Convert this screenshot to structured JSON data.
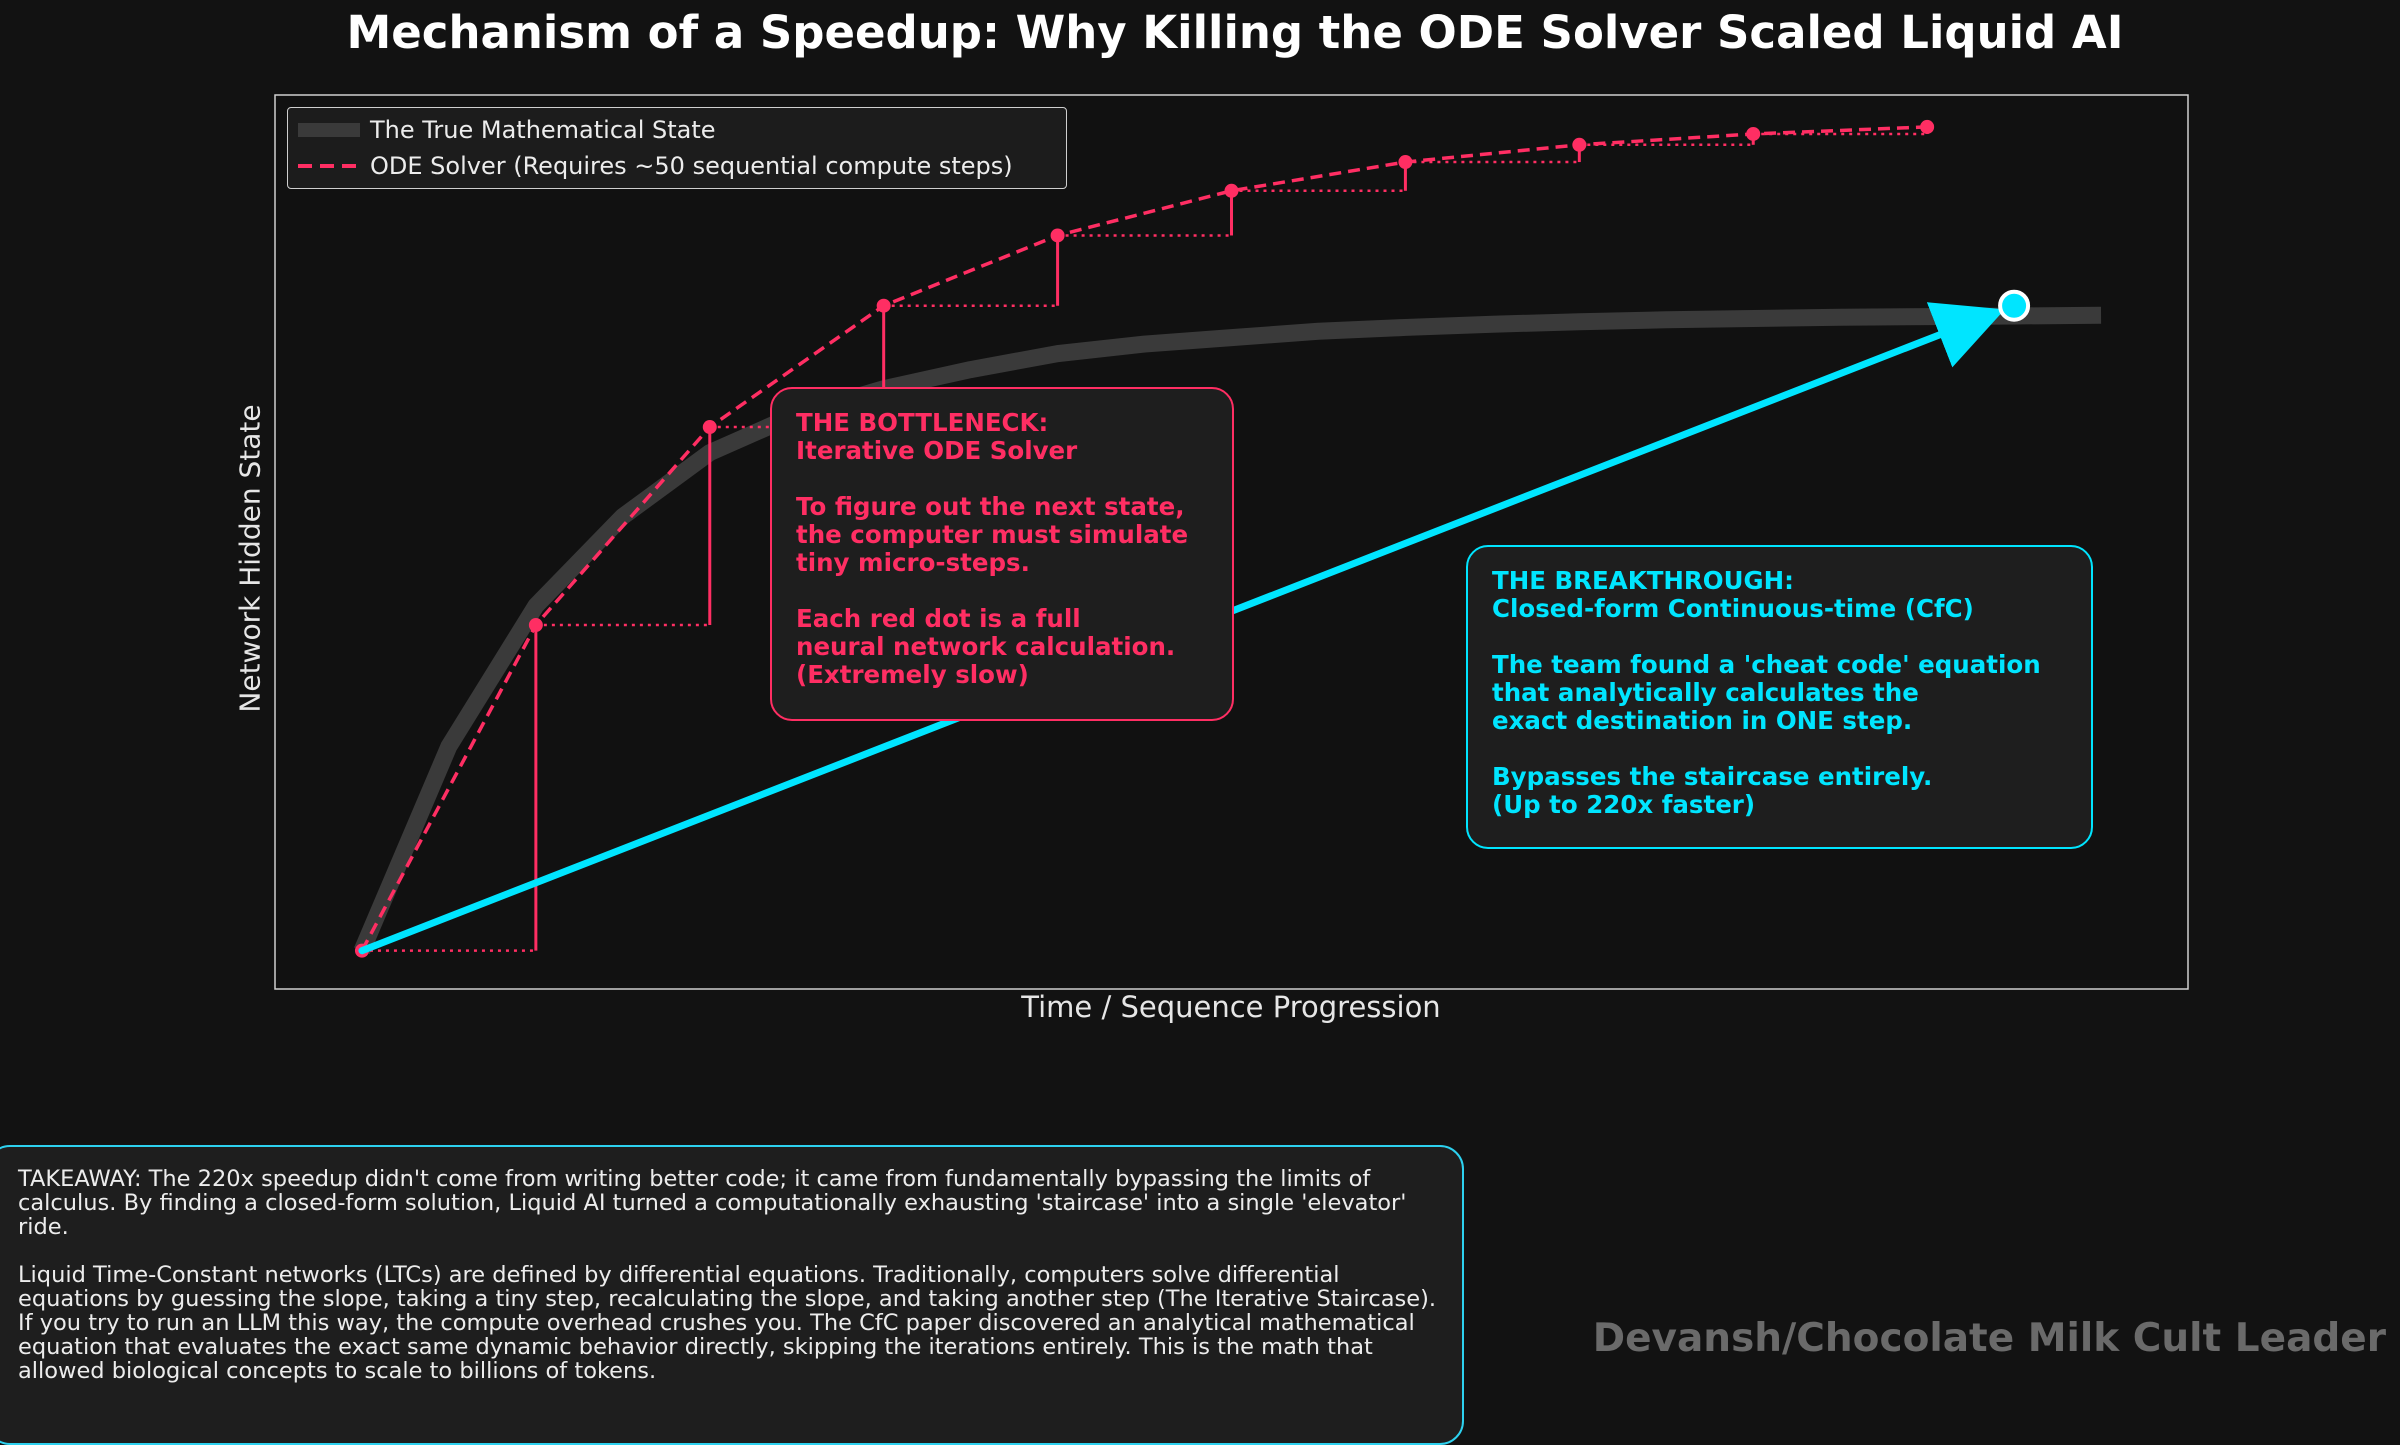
{
  "title": "Mechanism of a Speedup: Why Killing the ODE Solver Scaled Liquid AI",
  "chart_data": {
    "type": "line",
    "xlabel": "Time / Sequence Progression",
    "ylabel": "Network Hidden State",
    "ticks": "none",
    "grid": false,
    "legend_position": "top-left",
    "series": [
      {
        "name": "The True Mathematical State",
        "style": "thick gray line",
        "color": "#3a3a3a",
        "x": [
          0,
          0.5,
          1,
          1.5,
          2,
          2.5,
          3,
          3.5,
          4,
          4.5,
          5,
          5.5,
          6,
          6.5,
          7,
          7.5,
          8,
          8.5,
          9,
          9.5,
          10
        ],
        "y": [
          0,
          0.32,
          0.54,
          0.68,
          0.78,
          0.84,
          0.88,
          0.91,
          0.935,
          0.95,
          0.96,
          0.97,
          0.976,
          0.981,
          0.985,
          0.988,
          0.99,
          0.992,
          0.993,
          0.994,
          0.995
        ]
      },
      {
        "name": "ODE Solver (Requires ~50 sequential compute steps)",
        "style": "dashed line with dots, staircase",
        "color": "#ff2e63",
        "x": [
          0,
          1,
          2,
          3,
          4,
          5,
          6,
          7,
          8,
          9
        ],
        "y": [
          0,
          0.51,
          0.82,
          1.01,
          1.12,
          1.19,
          1.235,
          1.262,
          1.279,
          1.29
        ]
      },
      {
        "style": "single-step arrow",
        "color": "#00e5ff",
        "x": [
          0,
          9.5
        ],
        "y": [
          0,
          1.01
        ]
      }
    ],
    "ylim": [
      -0.06,
      1.34
    ],
    "xlim": [
      -0.5,
      10.5
    ]
  },
  "callouts": {
    "bottleneck": "THE BOTTLENECK:\nIterative ODE Solver\n\nTo figure out the next state,\nthe computer must simulate\ntiny micro-steps.\n\nEach red dot is a full\nneural network calculation.\n(Extremely slow)",
    "breakthrough": "THE BREAKTHROUGH:\nClosed-form Continuous-time (CfC)\n\nThe team found a 'cheat code' equation\nthat analytically calculates the\nexact destination in ONE step.\n\nBypasses the staircase entirely.\n(Up to 220x faster)"
  },
  "takeaway": {
    "p1": "TAKEAWAY: The 220x speedup didn't come from writing better code; it came from fundamentally bypassing the limits of calculus. By finding a closed-form solution, Liquid AI turned a computationally exhausting 'staircase' into a single 'elevator' ride.",
    "p2": "Liquid Time-Constant networks (LTCs) are defined by differential equations. Traditionally, computers solve differential equations by guessing the slope, taking a tiny step, recalculating the slope, and taking another step (The Iterative Staircase). If you try to run an LLM this way, the compute overhead crushes you. The CfC paper discovered an analytical mathematical equation that evaluates the exact same dynamic behavior directly, skipping the iterations entirely. This is the math that allowed biological concepts to scale to billions of tokens."
  },
  "watermark": "Devansh/Chocolate Milk Cult Leader",
  "colors": {
    "background": "#121212",
    "ode": "#ff2e63",
    "cfc": "#00e5ff",
    "true_state": "#3a3a3a"
  }
}
